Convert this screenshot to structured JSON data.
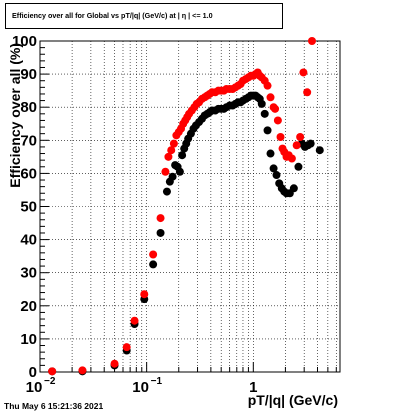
{
  "chart_data": {
    "type": "scatter",
    "title": "Efficiency over all for Global vs pT/|q| (GeV/c) at | η | <= 1.0",
    "xlabel": "pT/|q| (GeV/c)",
    "ylabel": "Efficiency over all (%)",
    "x_scale": "log",
    "xlim": [
      0.01,
      6.5
    ],
    "ylim": [
      0,
      100
    ],
    "x_ticks": [
      {
        "value": 0.01,
        "label": "10",
        "exp": "−2"
      },
      {
        "value": 0.1,
        "label": "10",
        "exp": "−1"
      },
      {
        "value": 1,
        "label": "1",
        "exp": ""
      }
    ],
    "y_ticks": [
      0,
      10,
      20,
      30,
      40,
      50,
      60,
      70,
      80,
      90,
      100
    ],
    "grid": true,
    "colors": {
      "black_series": "#000000",
      "red_series": "#ff0000"
    },
    "series": [
      {
        "color": "black",
        "points": [
          {
            "x": 0.013,
            "y": 0.2
          },
          {
            "x": 0.025,
            "y": 0.2
          },
          {
            "x": 0.05,
            "y": 2.0
          },
          {
            "x": 0.065,
            "y": 6.5
          },
          {
            "x": 0.077,
            "y": 14.5
          },
          {
            "x": 0.095,
            "y": 22.0
          },
          {
            "x": 0.115,
            "y": 32.5
          },
          {
            "x": 0.135,
            "y": 42.0
          },
          {
            "x": 0.155,
            "y": 54.5
          },
          {
            "x": 0.165,
            "y": 57.5
          },
          {
            "x": 0.175,
            "y": 59.0
          },
          {
            "x": 0.185,
            "y": 62.5
          },
          {
            "x": 0.195,
            "y": 62.0
          },
          {
            "x": 0.205,
            "y": 60.5
          },
          {
            "x": 0.215,
            "y": 65.5
          },
          {
            "x": 0.225,
            "y": 67.5
          },
          {
            "x": 0.235,
            "y": 69.0
          },
          {
            "x": 0.245,
            "y": 70.5
          },
          {
            "x": 0.26,
            "y": 72.0
          },
          {
            "x": 0.275,
            "y": 73.5
          },
          {
            "x": 0.29,
            "y": 74.5
          },
          {
            "x": 0.31,
            "y": 75.5
          },
          {
            "x": 0.33,
            "y": 76.5
          },
          {
            "x": 0.35,
            "y": 77.5
          },
          {
            "x": 0.37,
            "y": 78.0
          },
          {
            "x": 0.39,
            "y": 78.5
          },
          {
            "x": 0.41,
            "y": 79.0
          },
          {
            "x": 0.44,
            "y": 79.0
          },
          {
            "x": 0.47,
            "y": 79.5
          },
          {
            "x": 0.5,
            "y": 79.5
          },
          {
            "x": 0.53,
            "y": 79.5
          },
          {
            "x": 0.56,
            "y": 80.0
          },
          {
            "x": 0.6,
            "y": 80.5
          },
          {
            "x": 0.64,
            "y": 80.5
          },
          {
            "x": 0.68,
            "y": 81.0
          },
          {
            "x": 0.72,
            "y": 81.5
          },
          {
            "x": 0.76,
            "y": 81.5
          },
          {
            "x": 0.8,
            "y": 82.0
          },
          {
            "x": 0.85,
            "y": 82.5
          },
          {
            "x": 0.9,
            "y": 83.0
          },
          {
            "x": 0.95,
            "y": 83.5
          },
          {
            "x": 1.0,
            "y": 83.5
          },
          {
            "x": 1.05,
            "y": 83.5
          },
          {
            "x": 1.1,
            "y": 83.0
          },
          {
            "x": 1.15,
            "y": 82.5
          },
          {
            "x": 1.2,
            "y": 81.0
          },
          {
            "x": 1.28,
            "y": 78.0
          },
          {
            "x": 1.36,
            "y": 73.0
          },
          {
            "x": 1.45,
            "y": 66.0
          },
          {
            "x": 1.55,
            "y": 61.5
          },
          {
            "x": 1.65,
            "y": 59.5
          },
          {
            "x": 1.75,
            "y": 57.0
          },
          {
            "x": 1.85,
            "y": 55.5
          },
          {
            "x": 1.95,
            "y": 54.5
          },
          {
            "x": 2.05,
            "y": 54.0
          },
          {
            "x": 2.2,
            "y": 54.0
          },
          {
            "x": 2.4,
            "y": 55.5
          },
          {
            "x": 2.65,
            "y": 62.0
          },
          {
            "x": 2.85,
            "y": 69.0
          },
          {
            "x": 3.05,
            "y": 68.0
          },
          {
            "x": 3.25,
            "y": 68.5
          },
          {
            "x": 3.45,
            "y": 69.0
          },
          {
            "x": 4.2,
            "y": 67.0
          }
        ]
      },
      {
        "color": "red",
        "points": [
          {
            "x": 0.013,
            "y": 0.2
          },
          {
            "x": 0.025,
            "y": 0.5
          },
          {
            "x": 0.05,
            "y": 2.5
          },
          {
            "x": 0.065,
            "y": 7.5
          },
          {
            "x": 0.077,
            "y": 15.5
          },
          {
            "x": 0.095,
            "y": 23.5
          },
          {
            "x": 0.115,
            "y": 35.5
          },
          {
            "x": 0.135,
            "y": 46.5
          },
          {
            "x": 0.15,
            "y": 60.5
          },
          {
            "x": 0.16,
            "y": 65.0
          },
          {
            "x": 0.17,
            "y": 67.0
          },
          {
            "x": 0.18,
            "y": 69.0
          },
          {
            "x": 0.19,
            "y": 71.5
          },
          {
            "x": 0.2,
            "y": 72.5
          },
          {
            "x": 0.21,
            "y": 73.5
          },
          {
            "x": 0.22,
            "y": 75.0
          },
          {
            "x": 0.23,
            "y": 76.0
          },
          {
            "x": 0.24,
            "y": 77.0
          },
          {
            "x": 0.25,
            "y": 78.0
          },
          {
            "x": 0.265,
            "y": 79.0
          },
          {
            "x": 0.28,
            "y": 80.0
          },
          {
            "x": 0.295,
            "y": 81.0
          },
          {
            "x": 0.31,
            "y": 81.5
          },
          {
            "x": 0.33,
            "y": 82.5
          },
          {
            "x": 0.35,
            "y": 83.0
          },
          {
            "x": 0.37,
            "y": 83.5
          },
          {
            "x": 0.39,
            "y": 84.0
          },
          {
            "x": 0.41,
            "y": 84.5
          },
          {
            "x": 0.44,
            "y": 84.5
          },
          {
            "x": 0.47,
            "y": 85.0
          },
          {
            "x": 0.5,
            "y": 85.0
          },
          {
            "x": 0.53,
            "y": 85.0
          },
          {
            "x": 0.56,
            "y": 85.5
          },
          {
            "x": 0.6,
            "y": 85.5
          },
          {
            "x": 0.64,
            "y": 85.5
          },
          {
            "x": 0.68,
            "y": 86.0
          },
          {
            "x": 0.72,
            "y": 86.5
          },
          {
            "x": 0.76,
            "y": 87.0
          },
          {
            "x": 0.8,
            "y": 88.0
          },
          {
            "x": 0.85,
            "y": 88.5
          },
          {
            "x": 0.9,
            "y": 89.0
          },
          {
            "x": 0.95,
            "y": 89.5
          },
          {
            "x": 1.0,
            "y": 89.5
          },
          {
            "x": 1.05,
            "y": 90.0
          },
          {
            "x": 1.1,
            "y": 90.5
          },
          {
            "x": 1.15,
            "y": 89.5
          },
          {
            "x": 1.2,
            "y": 89.0
          },
          {
            "x": 1.28,
            "y": 88.0
          },
          {
            "x": 1.36,
            "y": 86.5
          },
          {
            "x": 1.45,
            "y": 83.0
          },
          {
            "x": 1.55,
            "y": 80.0
          },
          {
            "x": 1.6,
            "y": 79.5
          },
          {
            "x": 1.7,
            "y": 76.0
          },
          {
            "x": 1.8,
            "y": 71.0
          },
          {
            "x": 1.88,
            "y": 67.5
          },
          {
            "x": 1.95,
            "y": 66.5
          },
          {
            "x": 2.05,
            "y": 65.0
          },
          {
            "x": 2.15,
            "y": 65.5
          },
          {
            "x": 2.3,
            "y": 64.5
          },
          {
            "x": 2.55,
            "y": 68.5
          },
          {
            "x": 2.75,
            "y": 71.0
          },
          {
            "x": 2.95,
            "y": 90.5
          },
          {
            "x": 3.2,
            "y": 84.5
          },
          {
            "x": 3.55,
            "y": 100.0
          }
        ]
      }
    ]
  },
  "header": {
    "title": "Efficiency over all for Global vs pT/|q| (GeV/c) at | η | <= 1.0"
  },
  "footer": {
    "timestamp": "Thu May  6 15:21:36 2021"
  }
}
